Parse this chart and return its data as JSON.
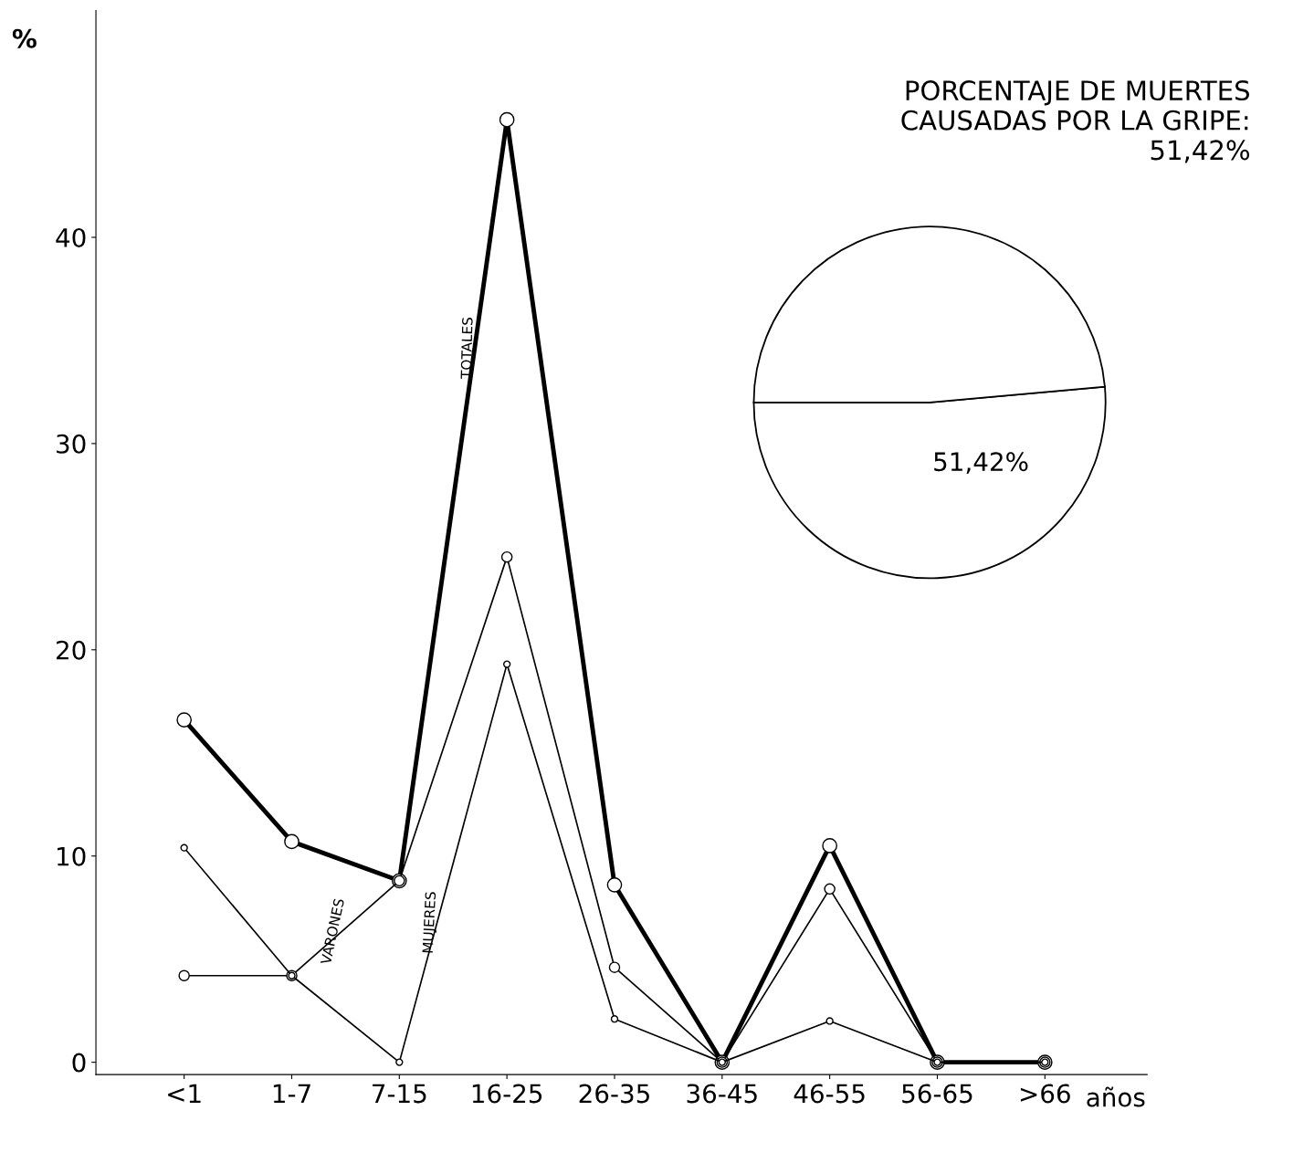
{
  "chart_data": [
    {
      "type": "line",
      "categories": [
        "<1",
        "1-7",
        "7-15",
        "16-25",
        "26-35",
        "36-45",
        "46-55",
        "56-65",
        ">66"
      ],
      "xlabel": "años",
      "ylabel": "%",
      "ylim": [
        -0.6,
        51
      ],
      "yticks": [
        0,
        10,
        20,
        30,
        40
      ],
      "grid": false,
      "legend": false,
      "marker": "circle",
      "line_style": "solid",
      "series": [
        {
          "name": "TOTALES",
          "color": "#000000",
          "values": [
            16.6,
            10.7,
            8.8,
            45.7,
            8.6,
            0,
            10.5,
            0,
            0
          ]
        },
        {
          "name": "VARONES",
          "color": "#000000",
          "values": [
            4.2,
            4.2,
            8.8,
            24.5,
            4.6,
            0,
            8.4,
            0,
            0
          ]
        },
        {
          "name": "MUJERES",
          "color": "#000000",
          "values": [
            10.4,
            4.2,
            0,
            19.3,
            2.1,
            0,
            2.0,
            0,
            0
          ]
        }
      ]
    },
    {
      "type": "pie",
      "title": "PORCENTAJE DE MUERTES\nCAUSADAS POR LA GRIPE:\n51,42%",
      "categories": [
        null,
        null
      ],
      "values": [
        51.42,
        48.58
      ],
      "colors": [
        "#ffffff",
        "#ffffff"
      ],
      "value_labels": [
        "51,42%",
        null
      ]
    }
  ]
}
